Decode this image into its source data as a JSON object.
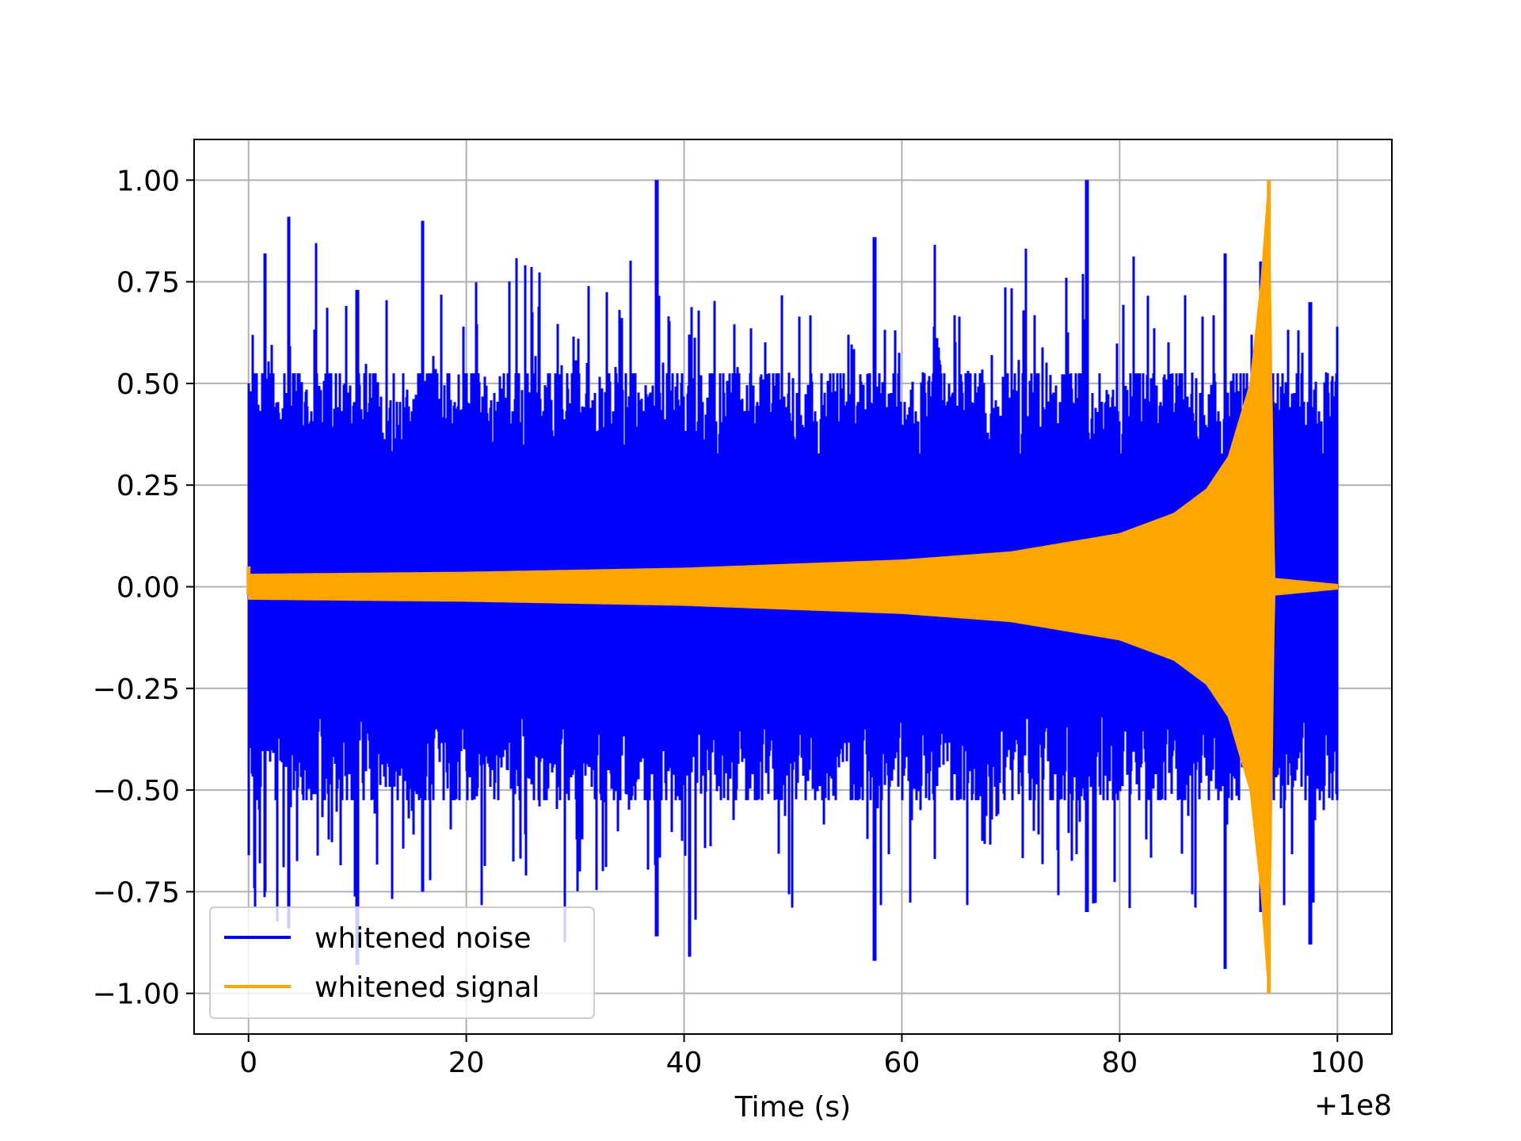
{
  "chart_data": {
    "type": "line",
    "title": "",
    "xlabel": "Time (s)",
    "ylabel": "",
    "x_offset_label": "+1e8",
    "xlim": [
      -5,
      105
    ],
    "ylim": [
      -1.1,
      1.1
    ],
    "xticks": [
      0,
      20,
      40,
      60,
      80,
      100
    ],
    "xtick_labels": [
      "0",
      "20",
      "40",
      "60",
      "80",
      "100"
    ],
    "yticks": [
      -1.0,
      -0.75,
      -0.5,
      -0.25,
      0.0,
      0.25,
      0.5,
      0.75,
      1.0
    ],
    "ytick_labels": [
      "−1.00",
      "−0.75",
      "−0.50",
      "−0.25",
      "0.00",
      "0.25",
      "0.50",
      "0.75",
      "1.00"
    ],
    "grid": true,
    "legend_position": "lower-left",
    "series": [
      {
        "name": "whitened noise",
        "color": "#0000ff",
        "description_of_envelope": "dense noise spanning t=0 to t=100; core band about ±0.5, peaks up to about ±1.0",
        "x_range": [
          0,
          100
        ],
        "core_band": [
          -0.5,
          0.5
        ],
        "max": 1.0,
        "min": -0.92,
        "envelope_points": [
          {
            "x": 0,
            "min": -0.66,
            "max": 0.5
          },
          {
            "x": 1.5,
            "min": -0.75,
            "max": 0.82
          },
          {
            "x": 3.7,
            "min": -0.84,
            "max": 0.91
          },
          {
            "x": 10,
            "min": -0.93,
            "max": 0.73
          },
          {
            "x": 16,
            "min": -0.75,
            "max": 0.9
          },
          {
            "x": 37.5,
            "min": -0.86,
            "max": 1.0
          },
          {
            "x": 40.5,
            "min": -0.91,
            "max": 0.62
          },
          {
            "x": 57.5,
            "min": -0.92,
            "max": 0.86
          },
          {
            "x": 77,
            "min": -0.8,
            "max": 1.0
          },
          {
            "x": 89.7,
            "min": -0.94,
            "max": 0.82
          },
          {
            "x": 93,
            "min": -0.8,
            "max": 0.8
          },
          {
            "x": 97.5,
            "min": -0.88,
            "max": 0.7
          },
          {
            "x": 100,
            "min": -0.5,
            "max": 0.5
          }
        ]
      },
      {
        "name": "whitened signal",
        "color": "#ffa500",
        "description_of_envelope": "chirp growing in amplitude toward merger at t≈93.7, then ring-down to near zero",
        "envelope_points": [
          {
            "x": 0,
            "amp": 0.03
          },
          {
            "x": 20,
            "amp": 0.035
          },
          {
            "x": 40,
            "amp": 0.045
          },
          {
            "x": 60,
            "amp": 0.065
          },
          {
            "x": 70,
            "amp": 0.085
          },
          {
            "x": 80,
            "amp": 0.13
          },
          {
            "x": 85,
            "amp": 0.18
          },
          {
            "x": 88,
            "amp": 0.24
          },
          {
            "x": 90,
            "amp": 0.32
          },
          {
            "x": 92,
            "amp": 0.5
          },
          {
            "x": 93,
            "amp": 0.75
          },
          {
            "x": 93.7,
            "amp": 1.0
          },
          {
            "x": 94.2,
            "amp": 0.02
          },
          {
            "x": 100,
            "amp": 0.005
          }
        ],
        "peak_x": 93.7,
        "peak_value": 1.0,
        "min_value": -1.0
      }
    ]
  }
}
